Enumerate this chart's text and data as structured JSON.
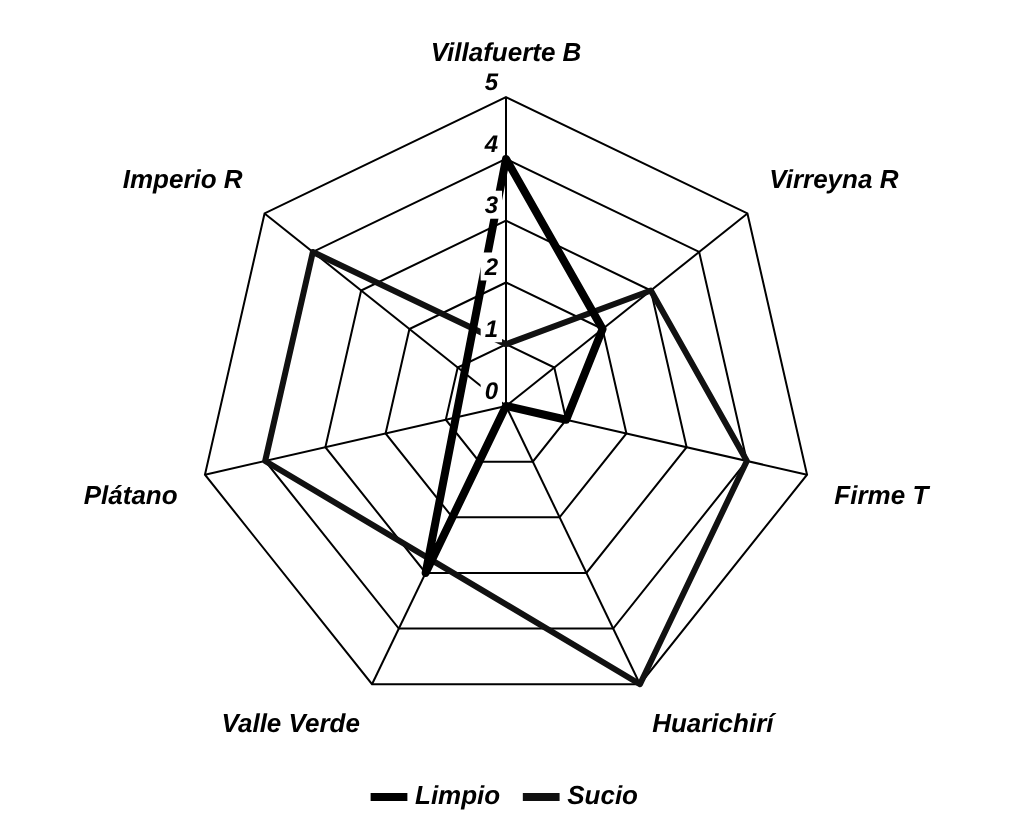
{
  "chart_data": {
    "type": "radar",
    "categories": [
      "Villafuerte B",
      "Virreyna R",
      "Firme T",
      "Huarichirí",
      "Valle Verde",
      "Plátano",
      "Imperio R"
    ],
    "series": [
      {
        "name": "Limpio",
        "color": "#000000",
        "values": [
          4,
          2,
          1,
          0,
          3,
          null,
          null
        ]
      },
      {
        "name": "Sucio",
        "color": "#111111",
        "values": [
          1,
          3,
          4,
          5,
          null,
          4,
          4
        ]
      }
    ],
    "ylim": [
      0,
      5
    ],
    "yticks": [
      0,
      1,
      2,
      3,
      4,
      5
    ],
    "grid": true,
    "legend": "bottom",
    "marker": "none",
    "line_style": "solid"
  }
}
